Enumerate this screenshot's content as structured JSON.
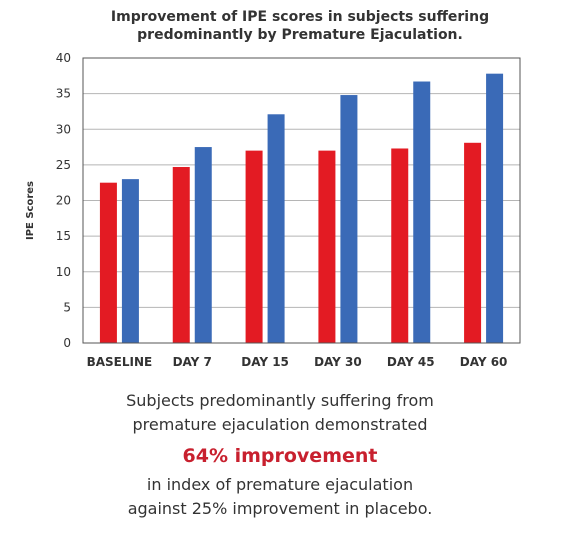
{
  "colors": {
    "series_a": "#e31b23",
    "series_b": "#3a6ab7",
    "highlight": "#c8202e",
    "text": "#333333"
  },
  "chart_data": {
    "type": "bar",
    "title": "Improvement of IPE scores in subjects suffering\npredominantly by Premature Ejaculation.",
    "ylabel": "IPE Scores",
    "xlabel": "",
    "categories": [
      "BASELINE",
      "DAY 7",
      "DAY 15",
      "DAY 30",
      "DAY 45",
      "DAY 60"
    ],
    "series": [
      {
        "values": [
          22.5,
          24.7,
          27.0,
          27.0,
          27.3,
          28.1
        ]
      },
      {
        "values": [
          23.0,
          27.5,
          32.1,
          34.8,
          36.7,
          37.8
        ]
      }
    ],
    "ylim": [
      0,
      40
    ],
    "yticks": [
      0,
      5,
      10,
      15,
      20,
      25,
      30,
      35,
      40
    ],
    "grid": true,
    "legend": "none"
  },
  "caption": {
    "line1": "Subjects predominantly suffering from",
    "line2": "premature ejaculation demonstrated",
    "highlight": "64% improvement",
    "line3": "in index of premature ejaculation",
    "line4": "against 25% improvement in placebo."
  }
}
